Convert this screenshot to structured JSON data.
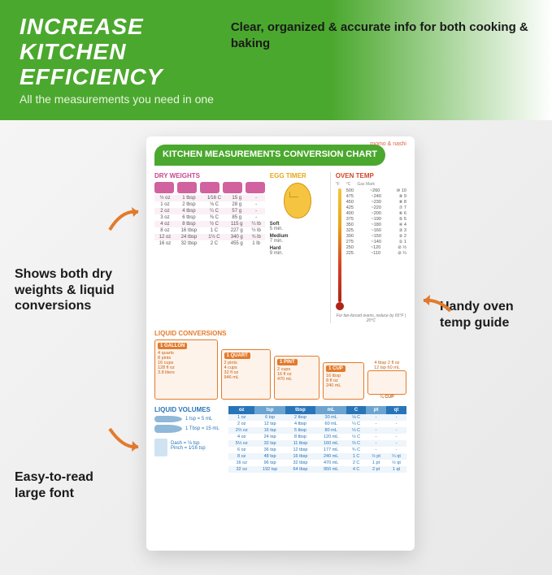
{
  "header": {
    "title_line1": "INCREASE KITCHEN",
    "title_line2": "EFFICIENCY",
    "subtitle": "All the measurements you need in one",
    "right_text": "Clear, organized & accurate info for both cooking & baking"
  },
  "callouts": {
    "c1": "Shows both dry weights & liquid conversions",
    "c2": "Handy oven temp guide",
    "c3": "Easy-to-read large font"
  },
  "colors": {
    "green": "#4ba82e",
    "orange": "#e37b2c",
    "pink": "#c9468e",
    "blue": "#2874b8",
    "red": "#d64527",
    "yellow": "#f5c542"
  },
  "chart": {
    "title": "KITCHEN MEASUREMENTS CONVERSION CHART",
    "brand": "momo & nashi",
    "dry": {
      "label": "DRY WEIGHTS",
      "headers": [
        "oz",
        "tbsp",
        "C",
        "g",
        "lb"
      ],
      "rows": [
        [
          "½ oz",
          "1 tbsp",
          "1⁄16 C",
          "15 g",
          "-"
        ],
        [
          "1 oz",
          "2 tbsp",
          "⅛ C",
          "28 g",
          "-"
        ],
        [
          "2 oz",
          "4 tbsp",
          "¼ C",
          "57 g",
          "-"
        ],
        [
          "3 oz",
          "6 tbsp",
          "⅜ C",
          "85 g",
          "-"
        ],
        [
          "4 oz",
          "8 tbsp",
          "½ C",
          "115 g",
          "¼ lb"
        ],
        [
          "8 oz",
          "16 tbsp",
          "1 C",
          "227 g",
          "½ lb"
        ],
        [
          "12 oz",
          "24 tbsp",
          "1½ C",
          "340 g",
          "¾ lb"
        ],
        [
          "16 oz",
          "32 tbsp",
          "2 C",
          "455 g",
          "1 lb"
        ]
      ]
    },
    "egg": {
      "label": "EGG TIMER",
      "times": [
        [
          "Soft",
          "5 min."
        ],
        [
          "Medium",
          "7 min."
        ],
        [
          "Hard",
          "9 min."
        ]
      ]
    },
    "oven": {
      "label": "OVEN TEMP",
      "headers": [
        "°F",
        "°C",
        "Gas Mark"
      ],
      "rows": [
        [
          "500",
          "~260",
          "⑩ 10"
        ],
        [
          "475",
          "~240",
          "⑨ 9"
        ],
        [
          "450",
          "~230",
          "⑧ 8"
        ],
        [
          "425",
          "~220",
          "⑦ 7"
        ],
        [
          "400",
          "~200",
          "⑥ 6"
        ],
        [
          "375",
          "~190",
          "⑤ 5"
        ],
        [
          "350",
          "~180",
          "④ 4"
        ],
        [
          "325",
          "~160",
          "③ 3"
        ],
        [
          "300",
          "~150",
          "② 2"
        ],
        [
          "275",
          "~140",
          "① 1"
        ],
        [
          "250",
          "~120",
          "⊘ ½"
        ],
        [
          "225",
          "~110",
          "⊘ ¼"
        ]
      ],
      "note": "For fan-forced ovens, reduce by 65°F | 20°C"
    },
    "liquid_conv": {
      "label": "LIQUID CONVERSIONS",
      "gallon": {
        "h": "1 GALLON",
        "lines": [
          "4 quarts",
          "8 pints",
          "16 cups",
          "128 fl oz",
          "3.8 liters"
        ]
      },
      "quart": {
        "h": "1 QUART",
        "lines": [
          "2 pints",
          "4 cups",
          "32 fl oz",
          "946 mL"
        ]
      },
      "pint": {
        "h": "1 PINT",
        "lines": [
          "2 cups",
          "16 fl oz",
          "470 mL"
        ]
      },
      "cup": {
        "h": "1 CUP",
        "lines": [
          "16 tbsp",
          "8 fl oz",
          "240 mL"
        ]
      },
      "qcup": {
        "top": "4 tbsp  2 fl oz",
        "top2": "12 tsp  60 mL",
        "label": "¼ CUP"
      }
    },
    "volumes": {
      "label": "LIQUID VOLUMES",
      "tsp": "1 tsp = 5 mL",
      "tbsp": "1 Tbsp = 15 mL",
      "dash": "Dash = ⅛ tsp",
      "pinch": "Pinch = 1⁄16 tsp",
      "headers": [
        "oz",
        "tsp",
        "tbsp",
        "mL",
        "C",
        "pt",
        "qt"
      ],
      "rows": [
        [
          "1 oz",
          "6 tsp",
          "2 tbsp",
          "30 mL",
          "⅛ C",
          "-",
          "-"
        ],
        [
          "2 oz",
          "12 tsp",
          "4 tbsp",
          "60 mL",
          "¼ C",
          "-",
          "-"
        ],
        [
          "2⅔ oz",
          "16 tsp",
          "5 tbsp",
          "80 mL",
          "⅓ C",
          "-",
          "-"
        ],
        [
          "4 oz",
          "24 tsp",
          "8 tbsp",
          "120 mL",
          "½ C",
          "-",
          "-"
        ],
        [
          "5⅓ oz",
          "32 tsp",
          "11 tbsp",
          "160 mL",
          "⅔ C",
          "-",
          "-"
        ],
        [
          "6 oz",
          "36 tsp",
          "12 tbsp",
          "177 mL",
          "¾ C",
          "-",
          "-"
        ],
        [
          "8 oz",
          "48 tsp",
          "16 tbsp",
          "240 mL",
          "1 C",
          "½ pt",
          "¼ qt"
        ],
        [
          "16 oz",
          "96 tsp",
          "32 tbsp",
          "470 mL",
          "2 C",
          "1 pt",
          "½ qt"
        ],
        [
          "32 oz",
          "192 tsp",
          "64 tbsp",
          "950 mL",
          "4 C",
          "2 pt",
          "1 qt"
        ]
      ]
    }
  }
}
